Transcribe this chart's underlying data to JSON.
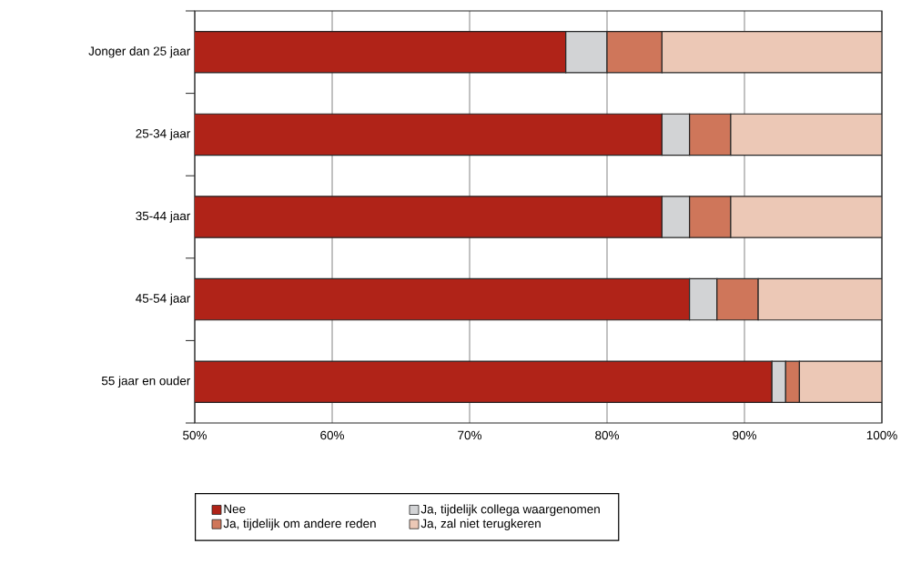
{
  "chart_data": {
    "type": "bar",
    "orientation": "horizontal",
    "stacked": true,
    "categories": [
      "Jonger dan 25 jaar",
      "25-34 jaar",
      "35-44 jaar",
      "45-54 jaar",
      "55 jaar en ouder"
    ],
    "series": [
      {
        "name": "Nee",
        "color": "#b02318",
        "values": [
          77,
          84,
          84,
          86,
          92
        ]
      },
      {
        "name": "Ja, tijdelijk collega waargenomen",
        "color": "#d2d3d5",
        "values": [
          3,
          2,
          2,
          2,
          1
        ],
        "base": [
          77,
          84,
          84,
          86,
          92
        ]
      },
      {
        "name": "Ja, tijdelijk om andere reden",
        "color": "#cf765a",
        "values": [
          4,
          3,
          3,
          3,
          1
        ],
        "base": [
          80,
          86,
          86,
          88,
          93
        ]
      },
      {
        "name": "Ja, zal niet terugkeren",
        "color": "#ecc8b6",
        "values": [
          16,
          11,
          11,
          9,
          6
        ],
        "base": [
          84,
          89,
          89,
          91,
          94
        ]
      }
    ],
    "xlim": [
      50,
      100
    ],
    "xticks": [
      {
        "value": 50,
        "label": "50%"
      },
      {
        "value": 60,
        "label": "60%"
      },
      {
        "value": 70,
        "label": "70%"
      },
      {
        "value": 80,
        "label": "80%"
      },
      {
        "value": 90,
        "label": "90%"
      },
      {
        "value": 100,
        "label": "100%"
      }
    ],
    "grid": "x",
    "legend": "bottom"
  }
}
